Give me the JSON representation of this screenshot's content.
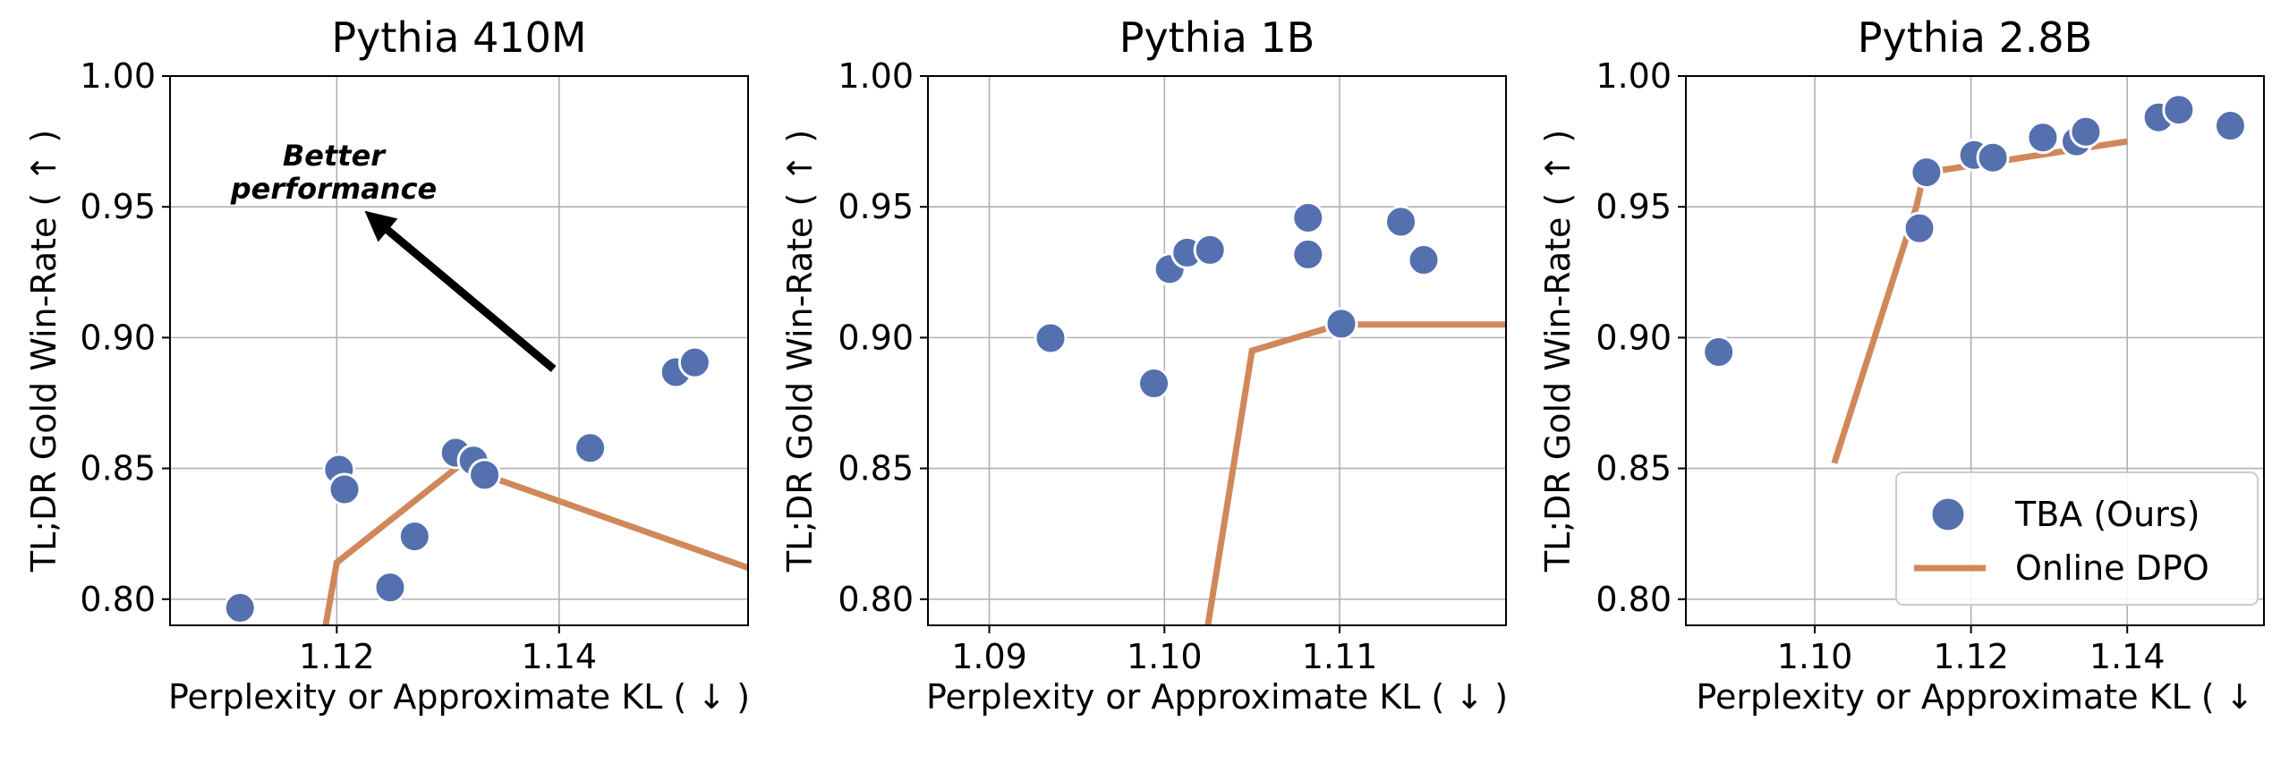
{
  "colors": {
    "tba": "#5470ae",
    "dpo": "#d0885a",
    "grid": "#b0b0b0"
  },
  "chart_data": [
    {
      "type": "scatter",
      "title": "Pythia 410M",
      "xlabel": "Perplexity or Approximate KL ( ↓ )",
      "ylabel": "TL;DR Gold Win-Rate ( ↑ )",
      "xlim": [
        1.105,
        1.157
      ],
      "ylim": [
        0.79,
        1.0
      ],
      "xticks": [
        1.12,
        1.14
      ],
      "xtick_labels": [
        "1.12",
        "1.14"
      ],
      "yticks": [
        0.8,
        0.85,
        0.9,
        0.95,
        1.0
      ],
      "ytick_labels": [
        "0.80",
        "0.85",
        "0.90",
        "0.95",
        "1.00"
      ],
      "grid": true,
      "annotation": {
        "text_line1": "Better",
        "text_line2": "performance",
        "arrow_from": [
          1.1395,
          0.888
        ],
        "arrow_to": [
          1.1225,
          0.9485
        ]
      },
      "series": [
        {
          "name": "TBA (Ours)",
          "kind": "scatter",
          "x": [
            1.1113,
            1.1202,
            1.1207,
            1.1248,
            1.127,
            1.1307,
            1.1323,
            1.1333,
            1.1428,
            1.1505,
            1.1522
          ],
          "y": [
            0.7967,
            0.8495,
            0.842,
            0.8045,
            0.824,
            0.856,
            0.853,
            0.8475,
            0.8578,
            0.8868,
            0.8905
          ]
        },
        {
          "name": "Online DPO",
          "kind": "line",
          "x": [
            1.117,
            1.119,
            1.12,
            1.131,
            1.157
          ],
          "y": [
            0.75,
            0.79,
            0.814,
            0.851,
            0.812
          ]
        }
      ]
    },
    {
      "type": "scatter",
      "title": "Pythia 1B",
      "xlabel": "Perplexity or Approximate KL ( ↓ )",
      "ylabel": "TL;DR Gold Win-Rate ( ↑ )",
      "xlim": [
        1.0865,
        1.1195
      ],
      "ylim": [
        0.79,
        1.0
      ],
      "xticks": [
        1.09,
        1.1,
        1.11
      ],
      "xtick_labels": [
        "1.09",
        "1.10",
        "1.11"
      ],
      "yticks": [
        0.8,
        0.85,
        0.9,
        0.95,
        1.0
      ],
      "ytick_labels": [
        "0.80",
        "0.85",
        "0.90",
        "0.95",
        "1.00"
      ],
      "grid": true,
      "series": [
        {
          "name": "TBA (Ours)",
          "kind": "scatter",
          "x": [
            1.0935,
            1.0994,
            1.1003,
            1.1013,
            1.1026,
            1.1082,
            1.1082,
            1.1101,
            1.1135,
            1.1148
          ],
          "y": [
            0.8998,
            0.8825,
            0.9262,
            0.9325,
            0.9335,
            0.9458,
            0.9318,
            0.9053,
            0.9443,
            0.9297
          ]
        },
        {
          "name": "Online DPO",
          "kind": "line",
          "x": [
            1.102,
            1.105,
            1.11,
            1.12
          ],
          "y": [
            0.77,
            0.895,
            0.905,
            0.905
          ]
        }
      ]
    },
    {
      "type": "scatter",
      "title": "Pythia 2.8B",
      "xlabel": "Perplexity or Approximate KL ( ↓",
      "ylabel": "TL;DR Gold Win-Rate ( ↑ )",
      "xlim": [
        1.0835,
        1.1575
      ],
      "ylim": [
        0.79,
        1.0
      ],
      "xticks": [
        1.1,
        1.12,
        1.14
      ],
      "xtick_labels": [
        "1.10",
        "1.12",
        "1.14"
      ],
      "yticks": [
        0.8,
        0.85,
        0.9,
        0.95,
        1.0
      ],
      "ytick_labels": [
        "0.80",
        "0.85",
        "0.90",
        "0.95",
        "1.00"
      ],
      "grid": true,
      "legend": {
        "placement": "lower-right",
        "items": [
          "TBA (Ours)",
          "Online DPO"
        ]
      },
      "series": [
        {
          "name": "TBA (Ours)",
          "kind": "scatter",
          "x": [
            1.0877,
            1.1134,
            1.1143,
            1.1204,
            1.1228,
            1.1292,
            1.1335,
            1.1347,
            1.144,
            1.1466,
            1.1532
          ],
          "y": [
            0.8945,
            0.9418,
            0.9632,
            0.9698,
            0.9688,
            0.9765,
            0.975,
            0.9787,
            0.9842,
            0.9871,
            0.981
          ]
        },
        {
          "name": "Online DPO",
          "kind": "line",
          "x": [
            1.1025,
            1.113,
            1.114,
            1.14
          ],
          "y": [
            0.852,
            0.95,
            0.963,
            0.975
          ]
        }
      ]
    }
  ]
}
